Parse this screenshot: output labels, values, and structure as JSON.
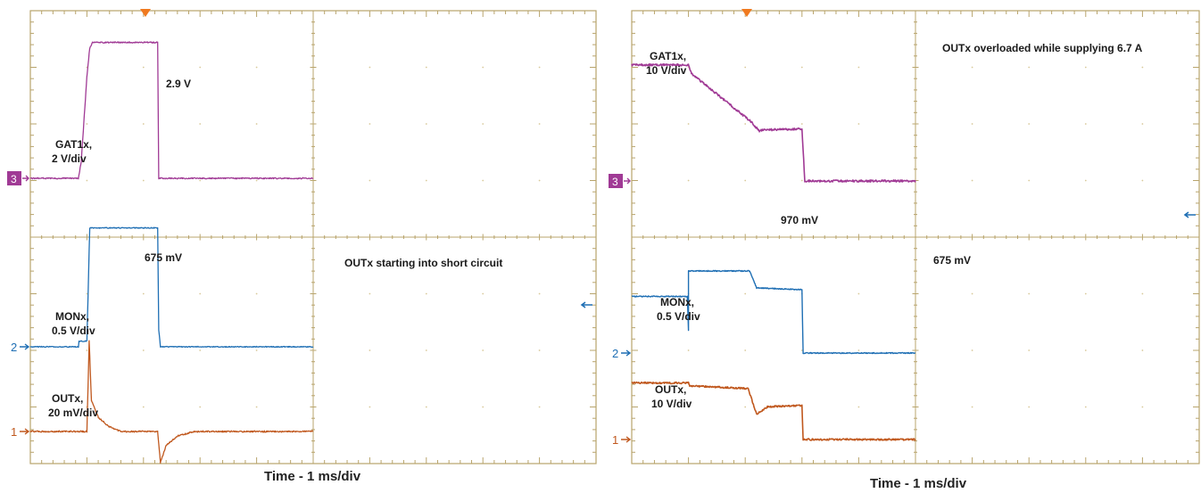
{
  "chart_data": [
    {
      "type": "line",
      "xlabel": "Time - 1 ms/div",
      "x_divisions": 10,
      "y_divisions": 8,
      "trigger_marker": "orange-triangle",
      "annotations": {
        "gate_level": "2.9 V",
        "mon_level": "675 mV",
        "condition": "OUTx starting into short circuit"
      },
      "channels": [
        {
          "id": "3",
          "name": "GAT1x,",
          "scale": "2 V/div",
          "color": "#a03a95",
          "marker_label": "3",
          "marker_style": "filled-box",
          "points": [
            [
              0,
              0
            ],
            [
              0.85,
              0
            ],
            [
              0.9,
              0.3
            ],
            [
              1.0,
              1.8
            ],
            [
              1.05,
              2.3
            ],
            [
              1.1,
              2.4
            ],
            [
              2.25,
              2.4
            ],
            [
              2.27,
              0
            ],
            [
              5,
              0
            ]
          ]
        },
        {
          "id": "2",
          "name": "MONx,",
          "scale": "0.5 V/div",
          "color": "#1f6fb4",
          "marker_label": "2",
          "marker_style": "arrow",
          "points": [
            [
              0,
              0
            ],
            [
              0.85,
              0
            ],
            [
              0.86,
              0.1
            ],
            [
              1.0,
              0.1
            ],
            [
              1.05,
              2.1
            ],
            [
              2.25,
              2.1
            ],
            [
              2.27,
              0.3
            ],
            [
              2.3,
              0
            ],
            [
              5,
              0
            ]
          ]
        },
        {
          "id": "1",
          "name": "OUTx,",
          "scale": "20 mV/div",
          "color": "#c0581e",
          "marker_label": "1",
          "marker_style": "arrow",
          "points": [
            [
              0,
              0
            ],
            [
              1.0,
              0
            ],
            [
              1.04,
              1.6
            ],
            [
              1.08,
              0.55
            ],
            [
              1.2,
              0.25
            ],
            [
              1.4,
              0.08
            ],
            [
              1.6,
              0
            ],
            [
              2.25,
              0
            ],
            [
              2.3,
              -0.55
            ],
            [
              2.4,
              -0.25
            ],
            [
              2.6,
              -0.08
            ],
            [
              2.9,
              0
            ],
            [
              5,
              0
            ]
          ]
        }
      ]
    },
    {
      "type": "line",
      "xlabel": "Time - 1 ms/div",
      "x_divisions": 10,
      "y_divisions": 8,
      "trigger_marker": "orange-triangle",
      "annotations": {
        "gate_label_text": "OUTx overloaded while supplying 6.7 A",
        "mon_high_level": "970 mV",
        "mon_mid_level": "675 mV"
      },
      "channels": [
        {
          "id": "3",
          "name": "GAT1x,",
          "scale": "10 V/div",
          "color": "#a03a95",
          "marker_label": "3",
          "marker_style": "filled-box",
          "points": [
            [
              0,
              2.05
            ],
            [
              1.0,
              2.05
            ],
            [
              1.05,
              1.9
            ],
            [
              2.1,
              1.05
            ],
            [
              2.25,
              0.88
            ],
            [
              2.3,
              0.9
            ],
            [
              3.0,
              0.92
            ],
            [
              3.05,
              0
            ],
            [
              5,
              0
            ]
          ]
        },
        {
          "id": "2",
          "name": "MONx,",
          "scale": "0.5 V/div",
          "color": "#1f6fb4",
          "marker_label": "2",
          "marker_style": "arrow",
          "points": [
            [
              0,
              1.0
            ],
            [
              0.98,
              1.0
            ],
            [
              1.0,
              0.4
            ],
            [
              1.0,
              1.45
            ],
            [
              2.08,
              1.45
            ],
            [
              2.2,
              1.15
            ],
            [
              3.0,
              1.12
            ],
            [
              3.02,
              0
            ],
            [
              5,
              0
            ]
          ]
        },
        {
          "id": "1",
          "name": "OUTx,",
          "scale": "10 V/div",
          "color": "#c0581e",
          "marker_label": "1",
          "marker_style": "arrow",
          "points": [
            [
              0,
              1.0
            ],
            [
              1.0,
              1.0
            ],
            [
              1.02,
              0.95
            ],
            [
              2.05,
              0.9
            ],
            [
              2.2,
              0.45
            ],
            [
              2.4,
              0.58
            ],
            [
              3.0,
              0.6
            ],
            [
              3.02,
              0
            ],
            [
              5,
              0
            ]
          ]
        }
      ]
    }
  ]
}
